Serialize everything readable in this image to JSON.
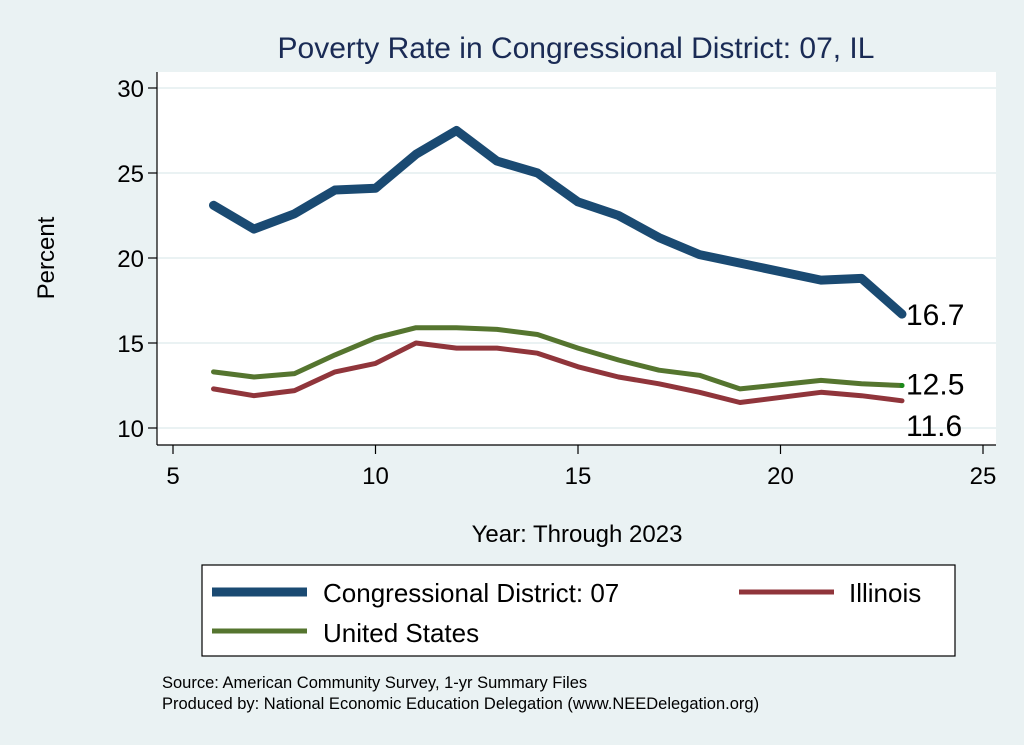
{
  "chart_data": {
    "type": "line",
    "title": "Poverty Rate in Congressional District:  07, IL",
    "xlabel": "Year: Through 2023",
    "ylabel": "Percent",
    "xlim": [
      5,
      25
    ],
    "ylim": [
      10,
      30
    ],
    "xticks": [
      5,
      10,
      15,
      20,
      25
    ],
    "yticks": [
      10,
      15,
      20,
      25,
      30
    ],
    "grid": true,
    "legend_position": "bottom",
    "series": [
      {
        "name": "Congressional District:  07",
        "color": "#1a4a72",
        "x": [
          6,
          7,
          8,
          9,
          10,
          11,
          12,
          13,
          14,
          15,
          16,
          17,
          18,
          19,
          21,
          22,
          23
        ],
        "values": [
          23.1,
          21.7,
          22.6,
          24.0,
          24.1,
          26.1,
          27.5,
          25.7,
          25.0,
          23.3,
          22.5,
          21.2,
          20.2,
          19.7,
          18.7,
          18.8,
          16.7
        ],
        "end_label": "16.7"
      },
      {
        "name": "Illinois",
        "color": "#90353b",
        "x": [
          6,
          7,
          8,
          9,
          10,
          11,
          12,
          13,
          14,
          15,
          16,
          17,
          18,
          19,
          21,
          22,
          23
        ],
        "values": [
          12.3,
          11.9,
          12.2,
          13.3,
          13.8,
          15.0,
          14.7,
          14.7,
          14.4,
          13.6,
          13.0,
          12.6,
          12.1,
          11.5,
          12.1,
          11.9,
          11.6
        ],
        "end_label": "11.6"
      },
      {
        "name": "United States",
        "color": "#55752f",
        "x": [
          6,
          7,
          8,
          9,
          10,
          11,
          12,
          13,
          14,
          15,
          16,
          17,
          18,
          19,
          21,
          22,
          23
        ],
        "values": [
          13.3,
          13.0,
          13.2,
          14.3,
          15.3,
          15.9,
          15.9,
          15.8,
          15.5,
          14.7,
          14.0,
          13.4,
          13.1,
          12.3,
          12.8,
          12.6,
          12.5
        ],
        "end_label": "12.5"
      }
    ],
    "notes": [
      "Source: American Community Survey, 1-yr Summary Files",
      "Produced by: National Economic Education Delegation (www.NEEDelegation.org)"
    ]
  },
  "colors": {
    "background": "#eaf2f3",
    "plot_background": "#ffffff",
    "grid": "#eaf2f3",
    "title": "#1a2b55"
  }
}
